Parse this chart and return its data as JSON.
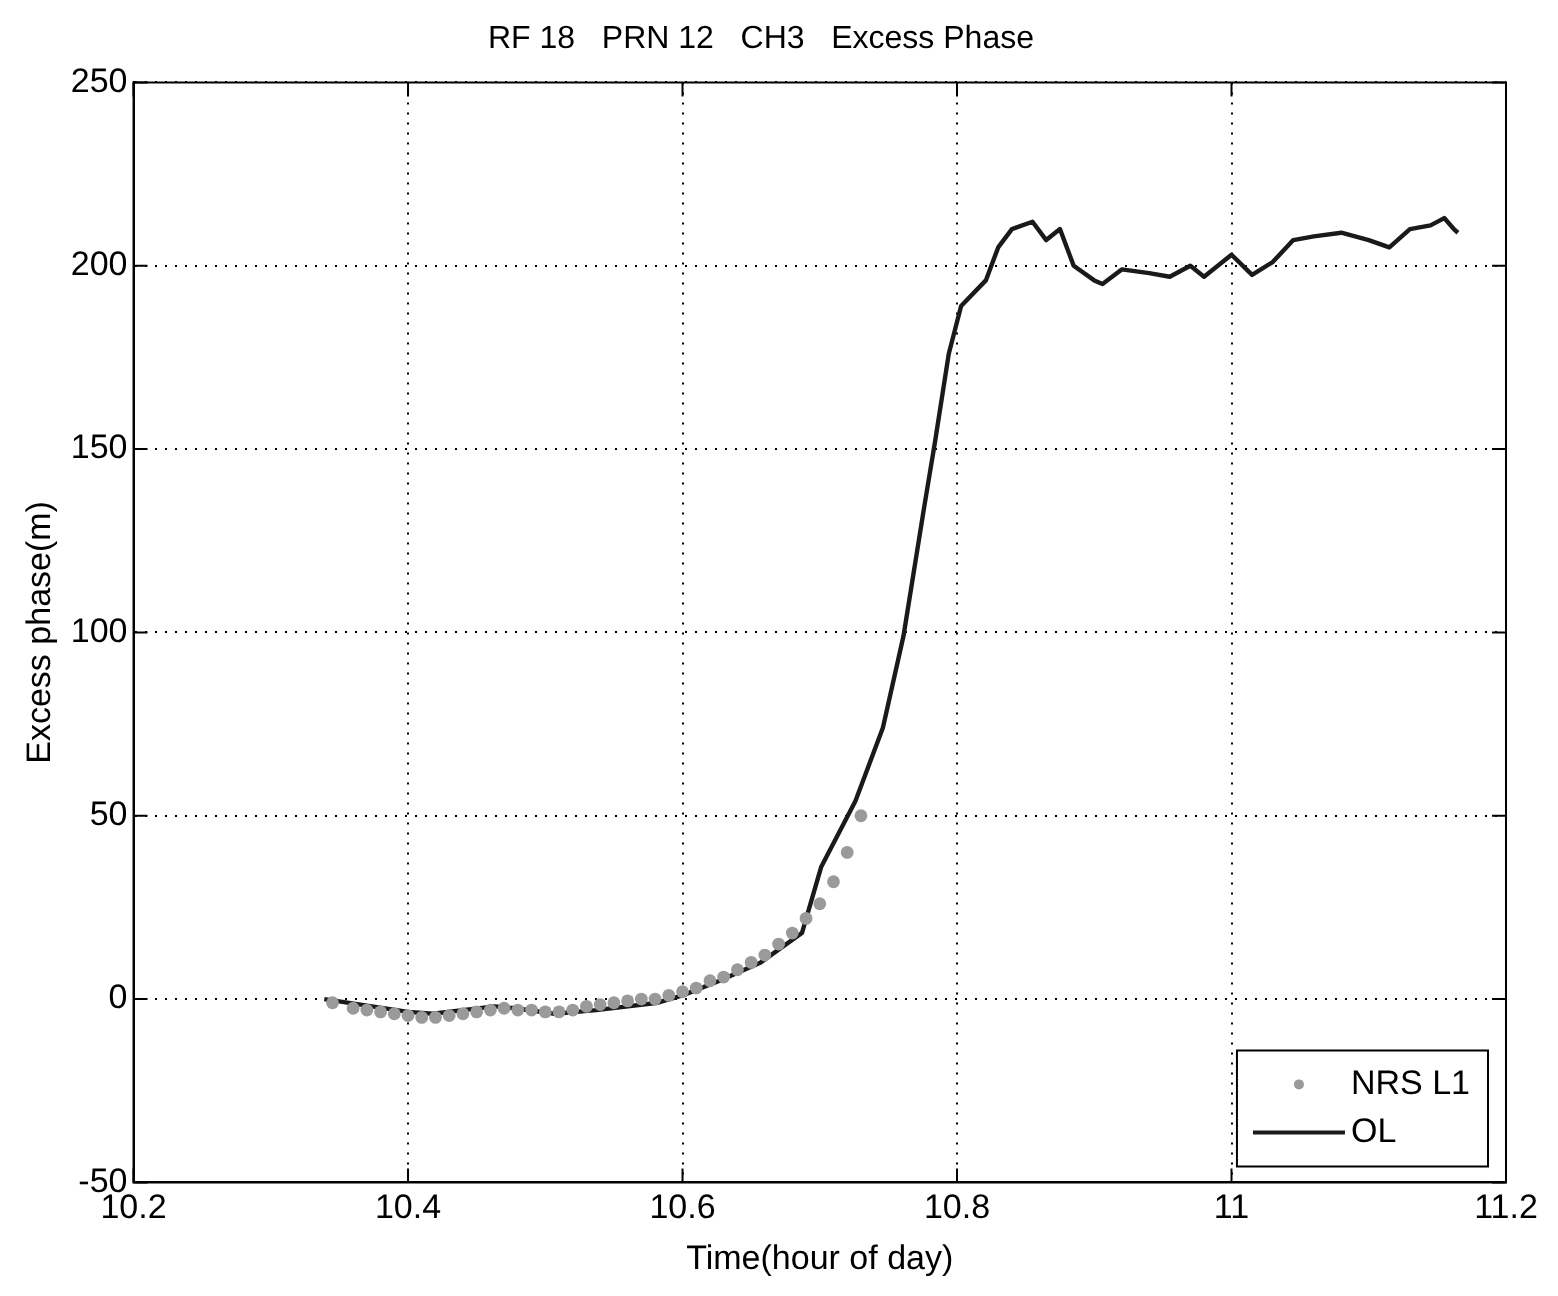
{
  "chart_data": {
    "type": "line",
    "title": "RF 18   PRN 12   CH3   Excess Phase",
    "xlabel": "Time(hour of day)",
    "ylabel": "Excess phase(m)",
    "xlim": [
      10.2,
      11.2
    ],
    "xticks": [
      10.2,
      10.4,
      10.6,
      10.8,
      11,
      11.2
    ],
    "ylim": [
      -50,
      250
    ],
    "yticks": [
      -50,
      0,
      50,
      100,
      150,
      200,
      250
    ],
    "grid": true,
    "legend": "bottom right",
    "series": [
      {
        "name": "NRS L1",
        "type": "scatter",
        "marker": "circle",
        "color": "#9a9a9a",
        "x": [
          10.345,
          10.36,
          10.37,
          10.38,
          10.39,
          10.4,
          10.41,
          10.42,
          10.43,
          10.44,
          10.45,
          10.46,
          10.47,
          10.48,
          10.49,
          10.5,
          10.51,
          10.52,
          10.53,
          10.54,
          10.55,
          10.56,
          10.57,
          10.58,
          10.59,
          10.6,
          10.61,
          10.62,
          10.63,
          10.64,
          10.65,
          10.66,
          10.67,
          10.68,
          10.69,
          10.7,
          10.71,
          10.72,
          10.73
        ],
        "values": [
          -1,
          -2.5,
          -3,
          -3.5,
          -4,
          -4.5,
          -5,
          -5,
          -4.5,
          -4,
          -3.5,
          -3,
          -2.5,
          -3,
          -3,
          -3.5,
          -3.5,
          -3,
          -2,
          -1.5,
          -1,
          -0.5,
          0,
          0,
          1,
          2,
          3,
          5,
          6,
          8,
          10,
          12,
          15,
          18,
          22,
          26,
          32,
          40,
          50
        ]
      },
      {
        "name": "OL",
        "color": "#1a1a1a",
        "line_style": "solid",
        "x": [
          10.339,
          10.4,
          10.418,
          10.463,
          10.478,
          10.507,
          10.537,
          10.582,
          10.6,
          10.627,
          10.657,
          10.687,
          10.701,
          10.726,
          10.746,
          10.761,
          10.776,
          10.784,
          10.794,
          10.803,
          10.821,
          10.83,
          10.84,
          10.855,
          10.865,
          10.875,
          10.885,
          10.9,
          10.906,
          10.92,
          10.94,
          10.955,
          10.97,
          10.98,
          11.0,
          11.015,
          11.03,
          11.045,
          11.06,
          11.08,
          11.1,
          11.115,
          11.13,
          11.145,
          11.155,
          11.162,
          11.165
        ],
        "values": [
          0,
          -3.5,
          -4,
          -2,
          -2.5,
          -4,
          -3,
          -1,
          1,
          5,
          10,
          18,
          36,
          54,
          74,
          99,
          134,
          152,
          176,
          189,
          196,
          205,
          210,
          212,
          207,
          210,
          200,
          196,
          195,
          199,
          198,
          197,
          200,
          197,
          203,
          197.5,
          201,
          207,
          208,
          209,
          207,
          205,
          210,
          211,
          213,
          210,
          209
        ]
      }
    ]
  }
}
